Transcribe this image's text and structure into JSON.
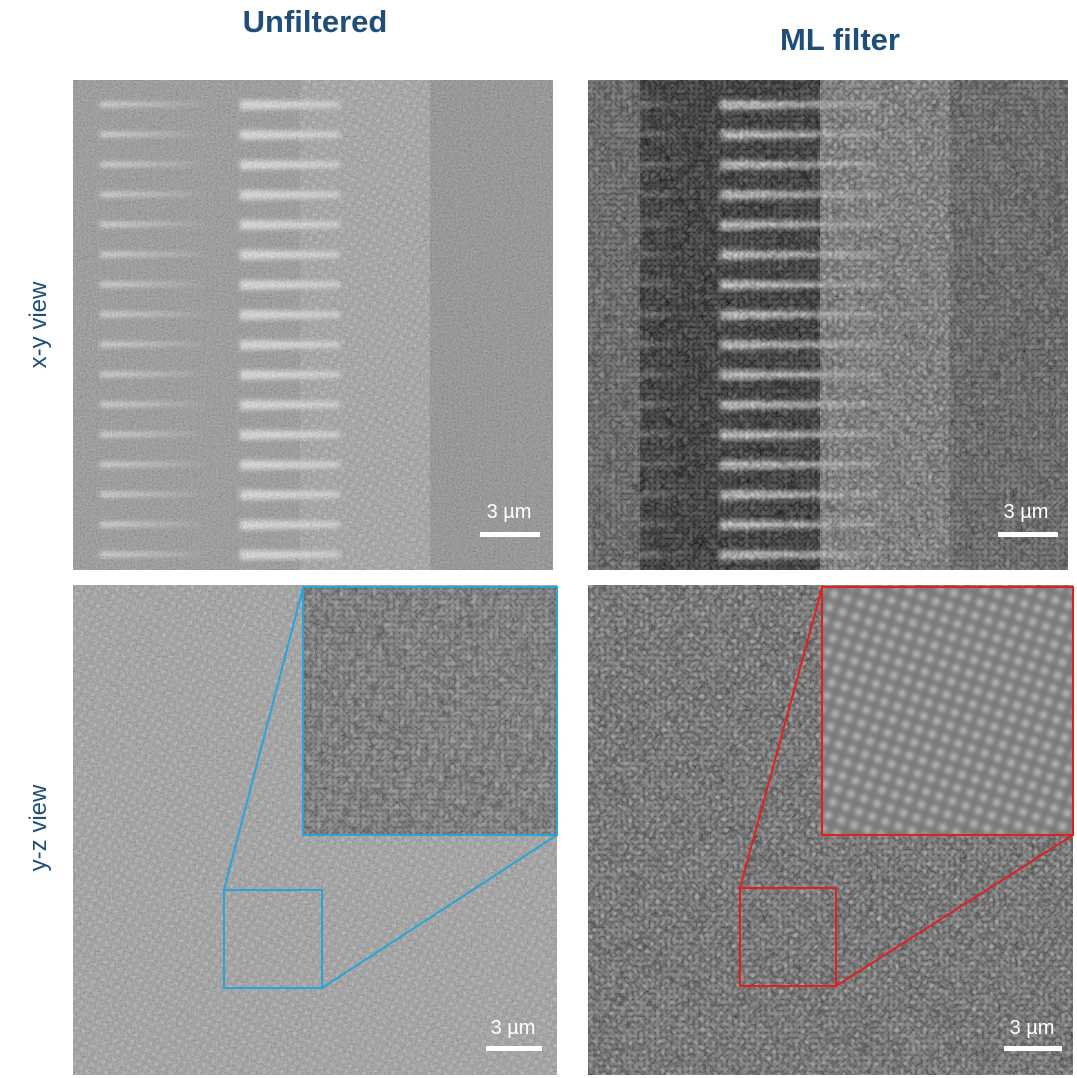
{
  "columns": [
    "Unfiltered",
    "ML filter"
  ],
  "rows": [
    "x-y view",
    "y-z view"
  ],
  "panels": [
    {
      "scale_bar": "3 µm"
    },
    {
      "scale_bar": "3 µm"
    },
    {
      "scale_bar": "3 µm"
    },
    {
      "scale_bar": "3 µm"
    }
  ]
}
